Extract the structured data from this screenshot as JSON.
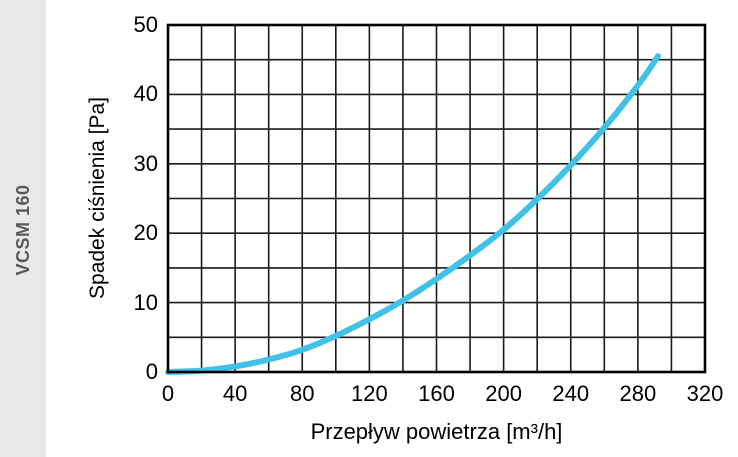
{
  "sidebar": {
    "label": "VCSM 160",
    "bg_color": "#e8e8e8",
    "text_color": "#58595b"
  },
  "chart_data": {
    "type": "line",
    "title": "",
    "xlabel": "Przepływ powietrza [m³/h]",
    "ylabel": "Spadek ciśnienia [Pa]",
    "xlim": [
      0,
      320
    ],
    "ylim": [
      0,
      50
    ],
    "x_ticks": [
      0,
      40,
      80,
      120,
      160,
      200,
      240,
      280,
      320
    ],
    "y_ticks": [
      0,
      10,
      20,
      30,
      40,
      50
    ],
    "x_minor_step": 20,
    "y_minor_step": 5,
    "grid": "minor-both",
    "grid_color": "#1a1a1a",
    "frame_color": "#000000",
    "legend": "none",
    "series": [
      {
        "name": "VCSM 160",
        "color": "#41c1e8",
        "stroke_width": 6,
        "points": [
          [
            0,
            0
          ],
          [
            20,
            0.2
          ],
          [
            40,
            0.8
          ],
          [
            60,
            1.8
          ],
          [
            80,
            3.2
          ],
          [
            100,
            5.2
          ],
          [
            120,
            7.6
          ],
          [
            140,
            10.3
          ],
          [
            160,
            13.4
          ],
          [
            180,
            16.8
          ],
          [
            200,
            20.5
          ],
          [
            220,
            24.9
          ],
          [
            240,
            29.8
          ],
          [
            260,
            35.2
          ],
          [
            280,
            41.3
          ],
          [
            292,
            45.5
          ]
        ]
      }
    ]
  }
}
